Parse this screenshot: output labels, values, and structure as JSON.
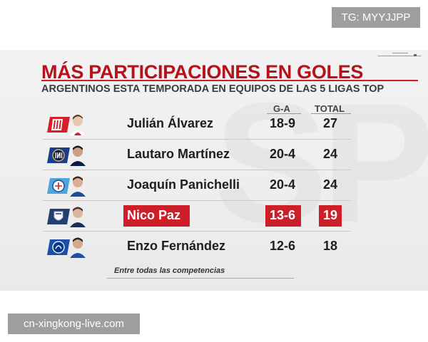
{
  "overlay": {
    "tg_tag": "TG: MYYJJPP",
    "site": "cn-xingkong-live.com"
  },
  "graphic": {
    "title": "MÁS PARTICIPACIONES EN GOLES",
    "subtitle": "ARGENTINOS ESTA TEMPORADA EN EQUIPOS DE LAS 5 LIGAS TOP",
    "columns": {
      "ga": "G-A",
      "total": "TOTAL"
    },
    "footnote": "Entre todas las competencias",
    "accent_color": "#cc1f29",
    "rows": [
      {
        "name": "Julián Álvarez",
        "ga": "18-9",
        "total": "27",
        "club_icon": "atletico-madrid-crest-icon",
        "highlight": false
      },
      {
        "name": "Lautaro Martínez",
        "ga": "20-4",
        "total": "24",
        "club_icon": "inter-milan-crest-icon",
        "highlight": false
      },
      {
        "name": "Joaquín Panichelli",
        "ga": "20-4",
        "total": "24",
        "club_icon": "strasbourg-crest-icon",
        "highlight": false
      },
      {
        "name": "Nico Paz",
        "ga": "13-6",
        "total": "19",
        "club_icon": "como-crest-icon",
        "highlight": true
      },
      {
        "name": "Enzo Fernández",
        "ga": "12-6",
        "total": "18",
        "club_icon": "chelsea-crest-icon",
        "highlight": false
      }
    ]
  }
}
